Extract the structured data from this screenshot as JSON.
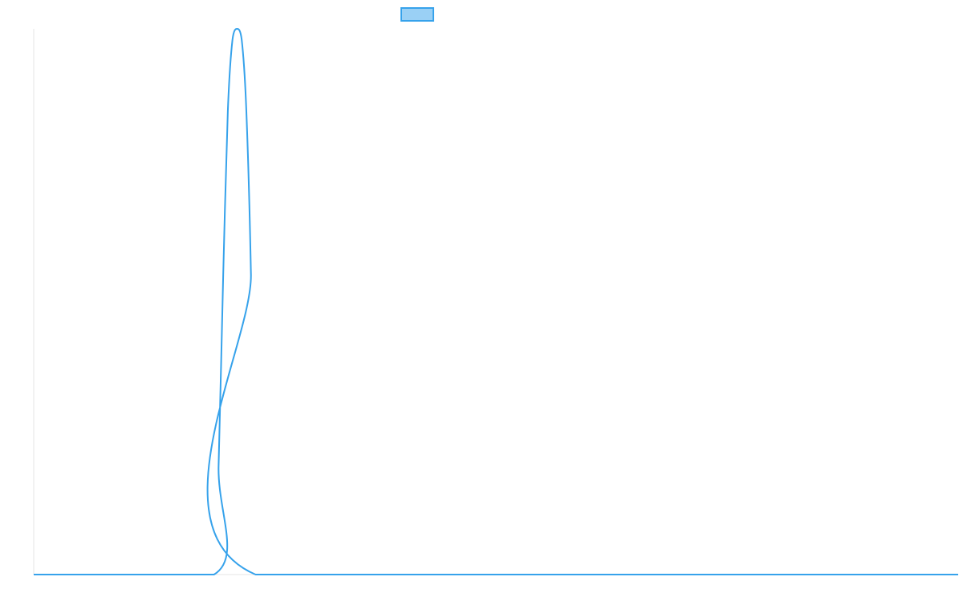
{
  "chart_data": {
    "type": "line",
    "title": "",
    "xlabel": "",
    "ylabel": "",
    "grid": false,
    "legend": "top-center",
    "xlim": [
      0,
      1
    ],
    "ylim": [
      0,
      1
    ],
    "series": [
      {
        "name": "",
        "color": "#36a2eb",
        "fill": "#9ad0f5",
        "x": [
          0,
          0.195,
          0.2,
          0.205,
          0.21,
          0.215,
          0.22,
          0.225,
          0.23,
          0.235,
          0.24,
          1
        ],
        "y": [
          0,
          0,
          0.2,
          0.55,
          0.85,
          0.98,
          1.0,
          0.98,
          0.85,
          0.55,
          0,
          0
        ]
      }
    ]
  }
}
